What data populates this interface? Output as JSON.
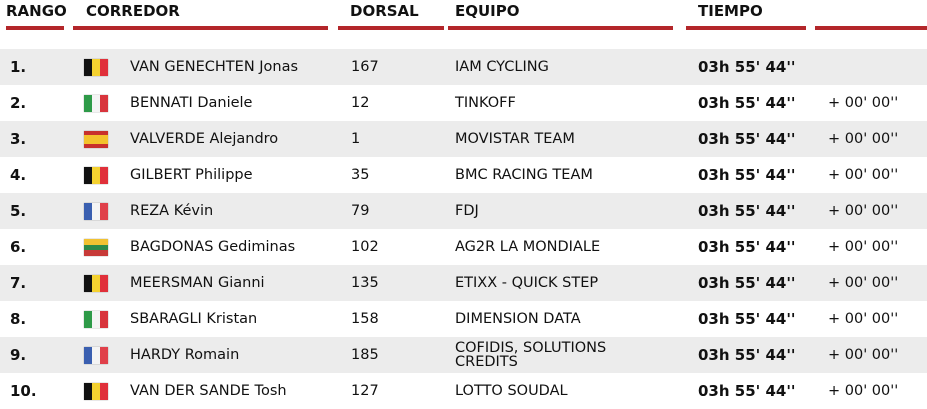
{
  "table": {
    "header": [
      "RANGO",
      "CORREDOR",
      "DORSAL",
      "EQUIPO",
      "TIEMPO"
    ],
    "rows": [
      [
        "1.",
        "VAN GENECHTEN Jonas",
        "167",
        "IAM CYCLING",
        "03h 55' 44''"
      ],
      [
        "2.",
        "BENNATI Daniele",
        "12",
        "TINKOFF",
        "03h 55' 44''",
        "+ 00' 00''"
      ],
      [
        "3.",
        "VALVERDE Alejandro",
        "1",
        "MOVISTAR TEAM",
        "03h 55' 44''",
        "+ 00' 00''"
      ],
      [
        "4.",
        "GILBERT Philippe",
        "35",
        "BMC RACING TEAM",
        "03h 55' 44''",
        "+ 00' 00''"
      ],
      [
        "5.",
        "REZA Kévin",
        "79",
        "FDJ",
        "03h 55' 44''",
        "+ 00' 00''"
      ],
      [
        "6.",
        "BAGDONAS Gediminas",
        "102",
        "AG2R LA MONDIALE",
        "03h 55' 44''",
        "+ 00' 00''"
      ],
      [
        "7.",
        "MEERSMAN Gianni",
        "135",
        "ETIXX - QUICK STEP",
        "03h 55' 44''",
        "+ 00' 00''"
      ],
      [
        "8.",
        "SBARAGLI Kristan",
        "158",
        "DIMENSION DATA",
        "03h 55' 44''",
        "+ 00' 00''"
      ],
      [
        "9.",
        "HARDY Romain",
        "185",
        "COFIDIS, SOLUTIONS CREDITS",
        "03h 55' 44''",
        "+ 00' 00''"
      ],
      [
        "10.",
        "VAN DER SANDE Tosh",
        "127",
        "LOTTO SOUDAL",
        "03h 55' 44''",
        "+ 00' 00''"
      ]
    ]
  }
}
